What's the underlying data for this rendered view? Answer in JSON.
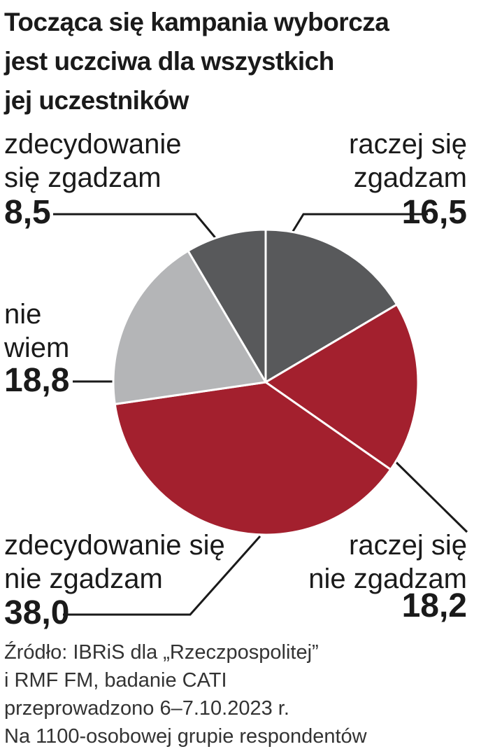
{
  "chart_data": {
    "type": "pie",
    "title": "Tocząca się kampania wyborcza\njest uczciwa dla wszystkich\njej uczestników",
    "categories": [
      "raczej się\nzgadzam",
      "raczej się\nnie zgadzam",
      "zdecydowanie się\nnie zgadzam",
      "nie\nwiem",
      "zdecydowanie\nsię zgadzam"
    ],
    "values": [
      16.5,
      18.2,
      38.0,
      18.8,
      8.5
    ],
    "value_labels": [
      "16,5",
      "18,2",
      "38,0",
      "18,8",
      "8,5"
    ],
    "colors": [
      "#58595b",
      "#a3202e",
      "#a3202e",
      "#b4b5b7",
      "#58595b"
    ],
    "source": "Źródło: IBRiS dla „Rzeczpospolitej”\ni RMF FM, badanie CATI\nprzeprowadzono 6–7.10.2023 r.\nNa 1100-osobowej grupie respondentów"
  }
}
